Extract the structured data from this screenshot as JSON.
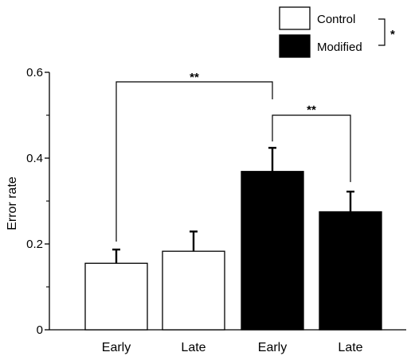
{
  "chart_data": {
    "type": "bar",
    "ylabel": "Error rate",
    "xlabel": "",
    "title": "",
    "ylim": [
      0,
      0.6
    ],
    "yticks": [
      {
        "value": 0,
        "label": "0"
      },
      {
        "value": 0.2,
        "label": "0.2"
      },
      {
        "value": 0.4,
        "label": "0.4"
      },
      {
        "value": 0.6,
        "label": "0.6"
      }
    ],
    "categories": [
      "Early",
      "Late",
      "Early",
      "Late"
    ],
    "bars": [
      {
        "category": "Early",
        "group": "Control",
        "value": 0.155,
        "error": 0.032
      },
      {
        "category": "Late",
        "group": "Control",
        "value": 0.183,
        "error": 0.046
      },
      {
        "category": "Early",
        "group": "Modified",
        "value": 0.369,
        "error": 0.055
      },
      {
        "category": "Late",
        "group": "Modified",
        "value": 0.275,
        "error": 0.047
      }
    ],
    "series": [
      {
        "name": "Control",
        "color": "#ffffff"
      },
      {
        "name": "Modified",
        "color": "#000000"
      }
    ],
    "legend_position": "top-right",
    "grid": false,
    "significance": [
      {
        "from": 0,
        "to": 2,
        "label": "**"
      },
      {
        "from": 2,
        "to": 3,
        "label": "**"
      },
      {
        "between": "legend",
        "label": "*"
      }
    ]
  }
}
